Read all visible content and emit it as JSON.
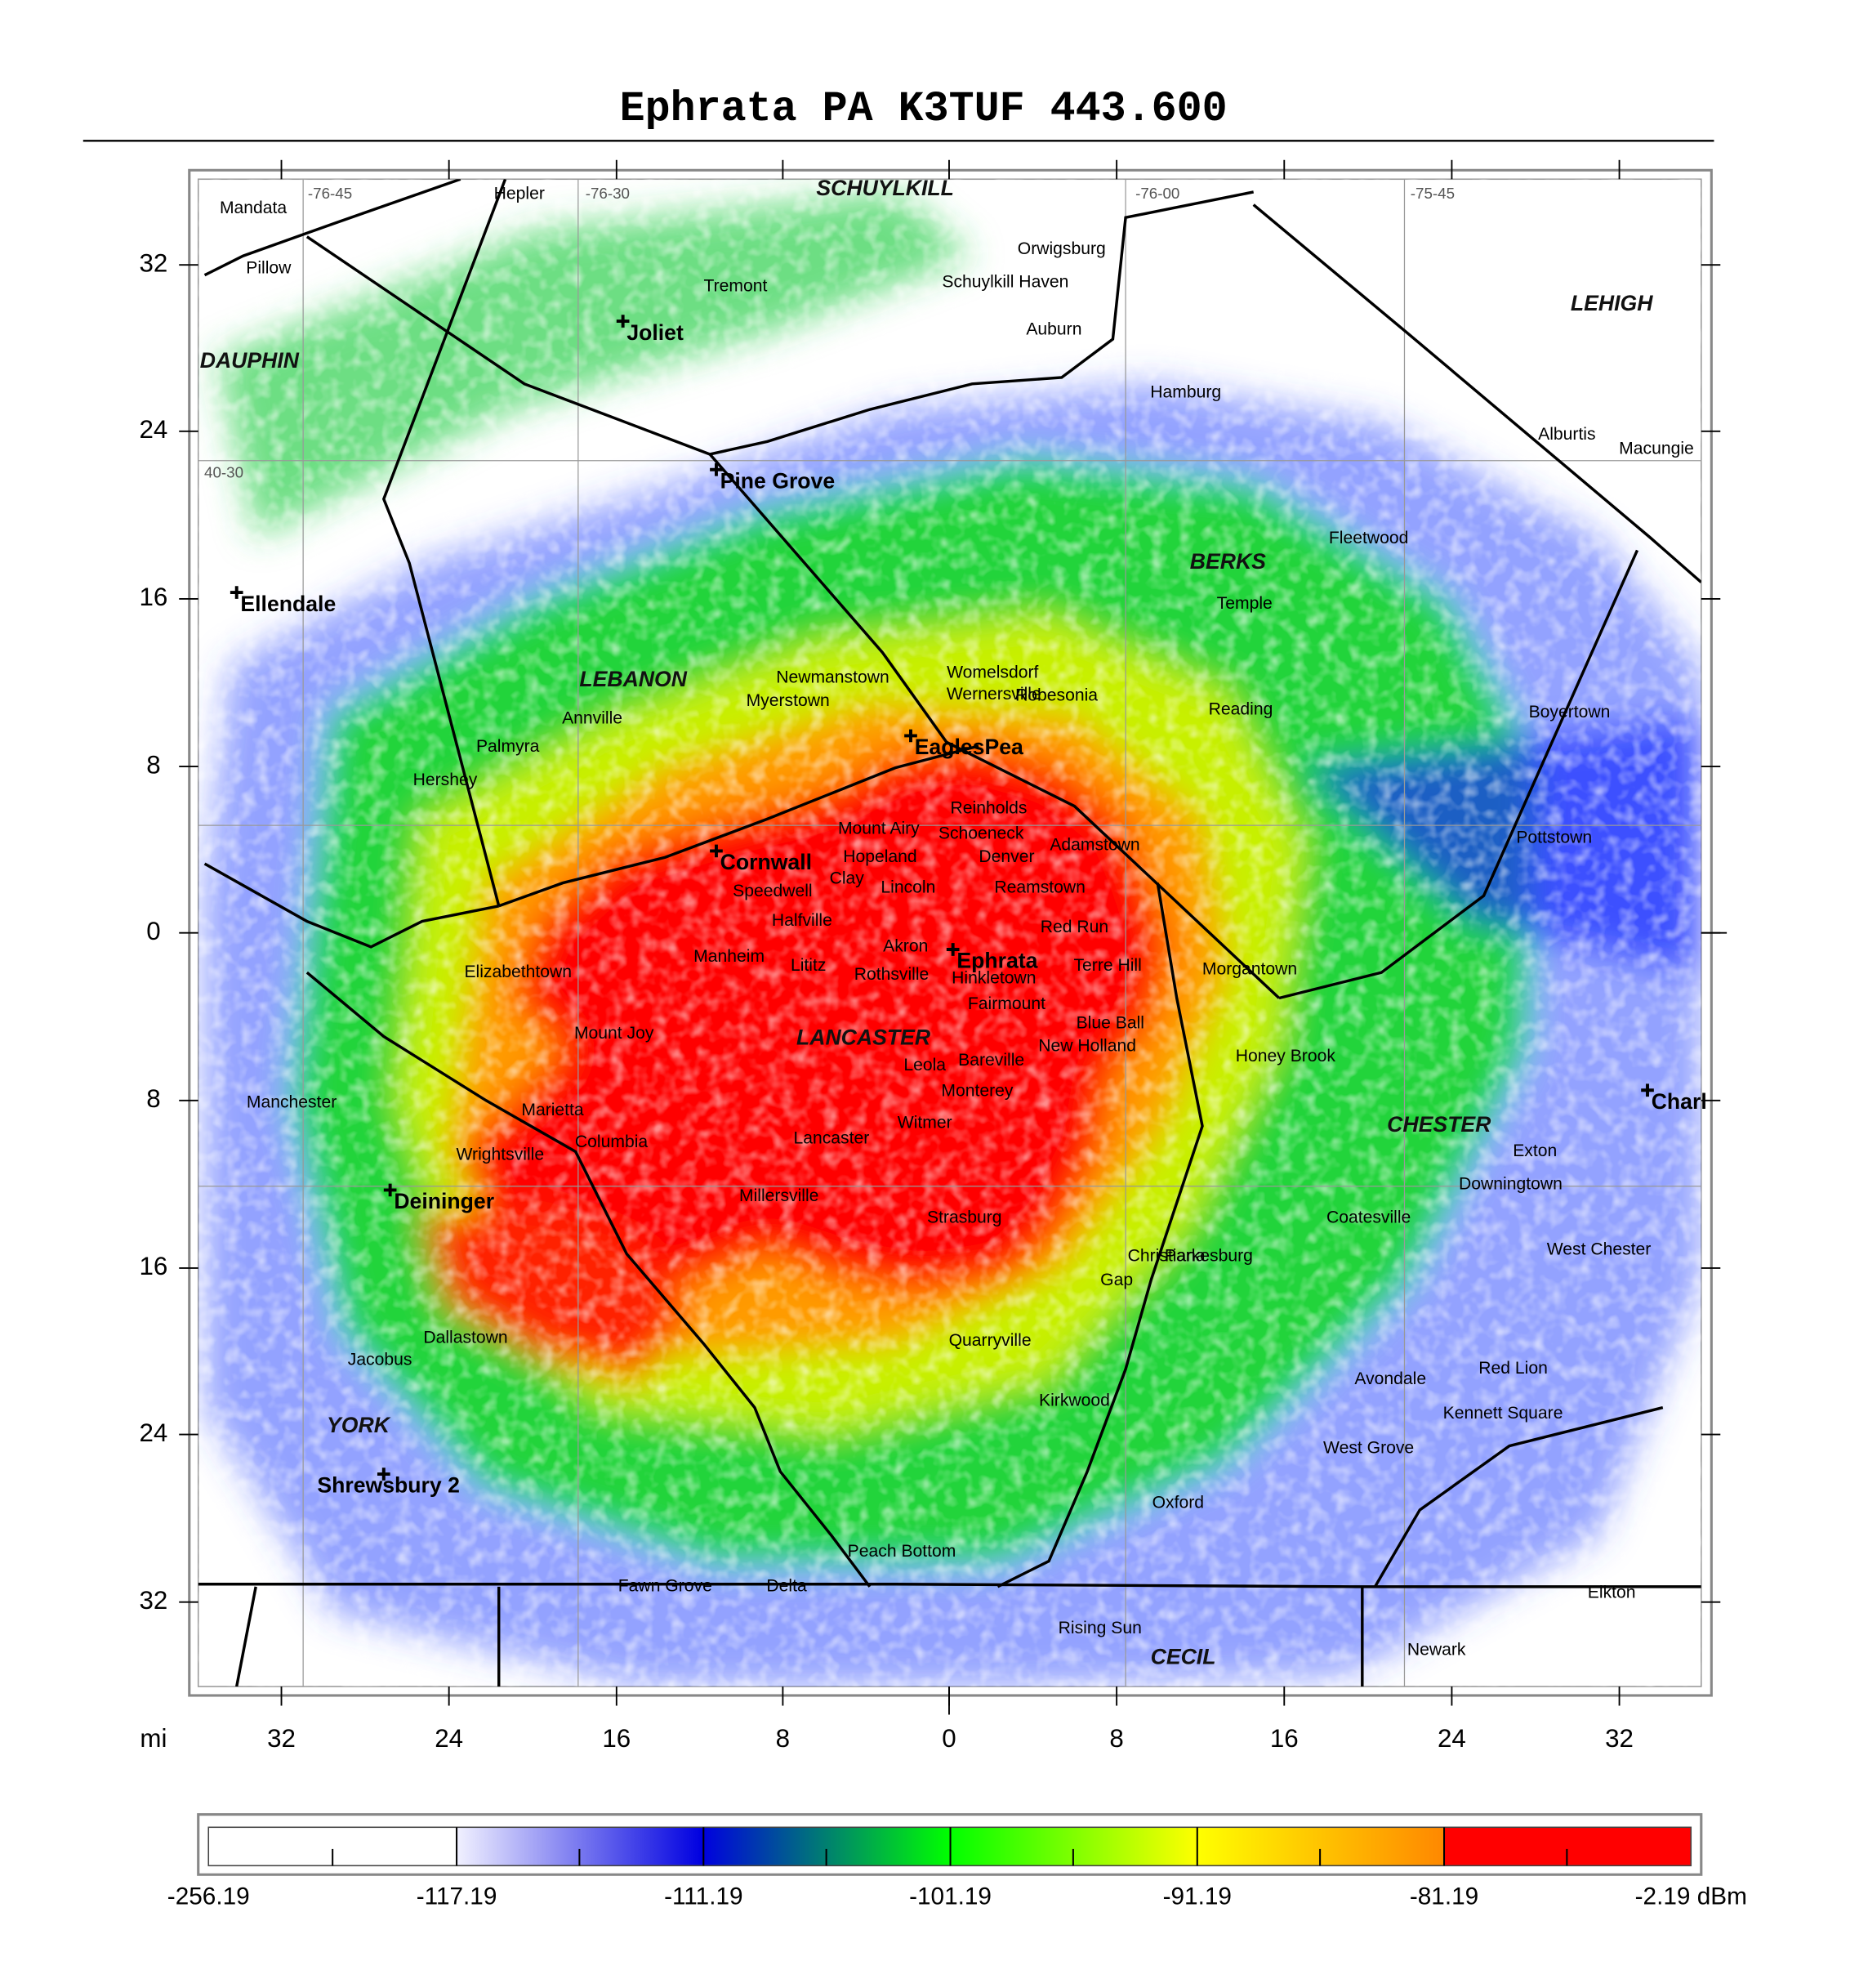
{
  "title": "Ephrata PA K3TUF 443.600",
  "y_axis_labels": [
    32,
    24,
    16,
    8,
    0,
    8,
    16,
    24,
    32
  ],
  "x_axis_labels": [
    32,
    24,
    16,
    8,
    0,
    8,
    16,
    24,
    32
  ],
  "x_axis_unit": "mi",
  "grid_labels": [
    "-76-45",
    "-76-30",
    "-76-00",
    "-75-45",
    "40-30"
  ],
  "counties": [
    "SCHUYLKILL",
    "DAUPHIN",
    "LEHIGH",
    "LEBANON",
    "BERKS",
    "LANCASTER",
    "CHESTER",
    "YORK",
    "CECIL"
  ],
  "cities": [
    "Ephrata",
    "Cornwall",
    "Pine Grove",
    "Joliet",
    "Ellendale",
    "Deininger",
    "Shrewsbury 2",
    "EaglesPea",
    "Charl"
  ],
  "towns": [
    "Denver",
    "Akron",
    "Lititz",
    "Manheim",
    "Reinholds",
    "Schoeneck",
    "Reamstown",
    "Lincoln",
    "Mount Airy",
    "Hopeland",
    "Clay",
    "Speedwell",
    "Halfville",
    "Rothsville",
    "Hinkletown",
    "Fairmount",
    "Terre Hill",
    "Red Run",
    "Blue Ball",
    "New Holland",
    "Leola",
    "Bareville",
    "Monterey",
    "Witmer",
    "Lancaster",
    "Millersville",
    "Strasburg",
    "Quarryville",
    "Reading",
    "Pottstown",
    "Hershey",
    "Palmyra",
    "Columbia",
    "Marietta",
    "Elizabethtown",
    "Mount Joy",
    "Wrightsville",
    "Oxford",
    "Morgantown",
    "Womelsdorf",
    "Newmanstown",
    "Hamburg",
    "Fleetwood",
    "Mandata",
    "Hepler",
    "Pillow",
    "Tremont",
    "Auburn",
    "Orwigsburg",
    "Schuylkill Haven",
    "Macungie",
    "Alburtis",
    "Temple",
    "Boyertown",
    "Exton",
    "West Chester",
    "Kennett Square",
    "Newark",
    "Elkton",
    "Rising Sun",
    "Red Lion",
    "Dallastown",
    "Jacobus",
    "Manchester",
    "Annville",
    "Myerstown",
    "Robesonia",
    "Wernersville",
    "Adamstown",
    "Gap",
    "Christiana",
    "Parkesburg",
    "Coatesville",
    "Honey Brook",
    "Downingtown",
    "Avondale",
    "West Grove",
    "Kirkwood",
    "Peach Bottom",
    "Delta",
    "Fawn Grove"
  ],
  "legend_labels": [
    "-256.19",
    "-117.19",
    "-111.19",
    "-101.19",
    "-91.19",
    "-81.19",
    "-2.19 dBm"
  ]
}
